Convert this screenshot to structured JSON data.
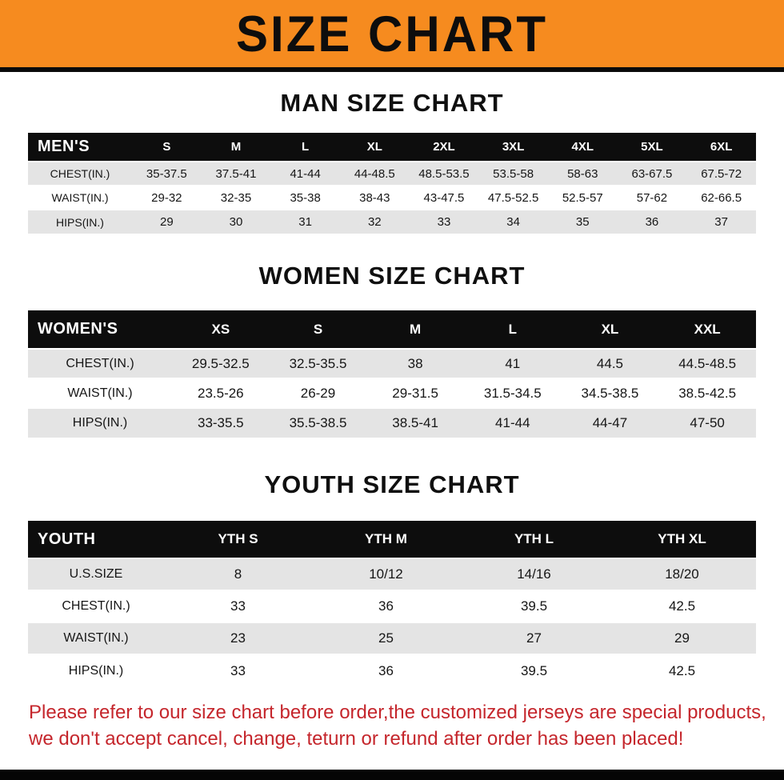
{
  "banner": {
    "title": "SIZE CHART"
  },
  "sections": [
    {
      "id": "men",
      "title": "MAN SIZE CHART",
      "table": {
        "header": [
          "MEN'S",
          "S",
          "M",
          "L",
          "XL",
          "2XL",
          "3XL",
          "4XL",
          "5XL",
          "6XL"
        ],
        "rows": [
          [
            "CHEST(IN.)",
            "35-37.5",
            "37.5-41",
            "41-44",
            "44-48.5",
            "48.5-53.5",
            "53.5-58",
            "58-63",
            "63-67.5",
            "67.5-72"
          ],
          [
            "WAIST(IN.)",
            "29-32",
            "32-35",
            "35-38",
            "38-43",
            "43-47.5",
            "47.5-52.5",
            "52.5-57",
            "57-62",
            "62-66.5"
          ],
          [
            "HIPS(IN.)",
            "29",
            "30",
            "31",
            "32",
            "33",
            "34",
            "35",
            "36",
            "37"
          ]
        ]
      }
    },
    {
      "id": "women",
      "title": "WOMEN SIZE CHART",
      "table": {
        "header": [
          "WOMEN'S",
          "XS",
          "S",
          "M",
          "L",
          "XL",
          "XXL"
        ],
        "rows": [
          [
            "CHEST(IN.)",
            "29.5-32.5",
            "32.5-35.5",
            "38",
            "41",
            "44.5",
            "44.5-48.5"
          ],
          [
            "WAIST(IN.)",
            "23.5-26",
            "26-29",
            "29-31.5",
            "31.5-34.5",
            "34.5-38.5",
            "38.5-42.5"
          ],
          [
            "HIPS(IN.)",
            "33-35.5",
            "35.5-38.5",
            "38.5-41",
            "41-44",
            "44-47",
            "47-50"
          ]
        ]
      }
    },
    {
      "id": "youth",
      "title": "YOUTH SIZE CHART",
      "table": {
        "header": [
          "YOUTH",
          "YTH S",
          "YTH M",
          "YTH L",
          "YTH XL"
        ],
        "rows": [
          [
            "U.S.SIZE",
            "8",
            "10/12",
            "14/16",
            "18/20"
          ],
          [
            "CHEST(IN.)",
            "33",
            "36",
            "39.5",
            "42.5"
          ],
          [
            "WAIST(IN.)",
            "23",
            "25",
            "27",
            "29"
          ],
          [
            "HIPS(IN.)",
            "33",
            "36",
            "39.5",
            "42.5"
          ]
        ]
      }
    }
  ],
  "footer": {
    "line1": "Please refer to our size chart before order,the customized jerseys are special products,",
    "line2": "we don't accept cancel, change, teturn or refund after order has been placed!"
  },
  "colors": {
    "banner-bg": "#F68B1F",
    "table-header-bg": "#0D0D0D",
    "row-stripe": "#E4E4E4",
    "notice-red": "#C5262C"
  }
}
